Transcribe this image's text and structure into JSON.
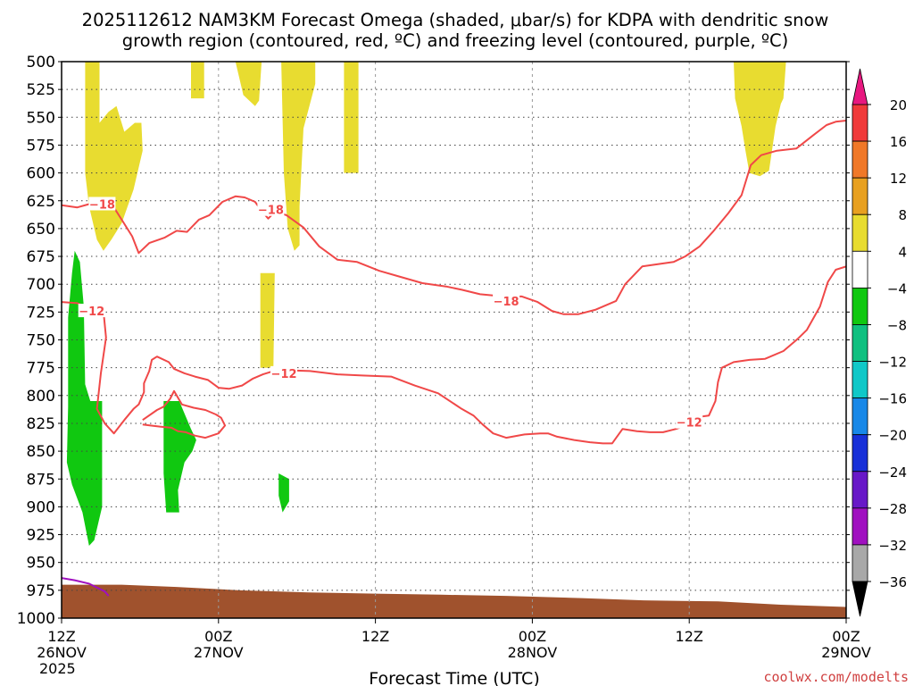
{
  "chart_data": {
    "type": "heatmap",
    "title_line1": "2025112612 NAM3KM Forecast Omega (shaded, μbar/s) for KDPA with dendritic snow",
    "title_line2": "growth region (contoured, red, ºC) and freezing level (contoured, purple, ºC)",
    "xlabel": "Forecast Time (UTC)",
    "credit": "coolwx.com/modelts",
    "x_range_hours": [
      0,
      60
    ],
    "y_range_mb": [
      500,
      1000
    ],
    "y_scale": "pressure, inverted (500 mb at top, 1000 mb at bottom)",
    "y_ticks": [
      500,
      525,
      550,
      575,
      600,
      625,
      650,
      675,
      700,
      725,
      750,
      775,
      800,
      825,
      850,
      875,
      900,
      925,
      950,
      975,
      1000
    ],
    "x_ticks": [
      {
        "hour": 0,
        "line1": "12Z",
        "line2": "26NOV",
        "line3": "2025"
      },
      {
        "hour": 12,
        "line1": "00Z",
        "line2": "27NOV",
        "line3": ""
      },
      {
        "hour": 24,
        "line1": "12Z",
        "line2": "",
        "line3": ""
      },
      {
        "hour": 36,
        "line1": "00Z",
        "line2": "28NOV",
        "line3": ""
      },
      {
        "hour": 48,
        "line1": "12Z",
        "line2": "",
        "line3": ""
      },
      {
        "hour": 60,
        "line1": "00Z",
        "line2": "29NOV",
        "line3": ""
      }
    ],
    "grid": true,
    "colorbar": {
      "placement": "right",
      "labels": [
        "20",
        "16",
        "12",
        "8",
        "4",
        "−4",
        "−8",
        "−12",
        "−16",
        "−20",
        "−24",
        "−28",
        "−32",
        "−36"
      ],
      "bins": [
        {
          "color": "#f03a3a"
        },
        {
          "color": "#f07828"
        },
        {
          "color": "#e8a020"
        },
        {
          "color": "#e8dc30"
        },
        {
          "color": "#ffffff"
        },
        {
          "color": "#10c810"
        },
        {
          "color": "#10c080"
        },
        {
          "color": "#10c8c8"
        },
        {
          "color": "#1888e8"
        },
        {
          "color": "#1830d8"
        },
        {
          "color": "#6818c8"
        },
        {
          "color": "#a010c0"
        },
        {
          "color": "#a8a8a8"
        }
      ],
      "top_arrow_color": "#e81880",
      "bottom_arrow_color": "#000000"
    },
    "omega_positive_regions": [
      {
        "color": "#e8dc30",
        "points": [
          [
            1.8,
            500
          ],
          [
            2.9,
            500
          ],
          [
            2.9,
            555
          ],
          [
            3.6,
            545
          ],
          [
            4.2,
            540
          ],
          [
            4.8,
            563
          ],
          [
            5.6,
            555
          ],
          [
            6.1,
            555
          ],
          [
            6.2,
            580
          ],
          [
            5.5,
            615
          ],
          [
            4.6,
            645
          ],
          [
            3.8,
            660
          ],
          [
            3.2,
            670
          ],
          [
            2.7,
            660
          ],
          [
            2.1,
            630
          ],
          [
            1.8,
            600
          ]
        ]
      },
      {
        "color": "#e8dc30",
        "points": [
          [
            9.9,
            500
          ],
          [
            10.9,
            500
          ],
          [
            10.9,
            533
          ],
          [
            9.9,
            533
          ]
        ]
      },
      {
        "color": "#e8dc30",
        "points": [
          [
            13.3,
            500
          ],
          [
            15.3,
            500
          ],
          [
            15.1,
            535
          ],
          [
            14.8,
            540
          ],
          [
            13.9,
            530
          ]
        ]
      },
      {
        "color": "#e8dc30",
        "points": [
          [
            16.8,
            500
          ],
          [
            19.4,
            500
          ],
          [
            19.4,
            520
          ],
          [
            18.5,
            560
          ],
          [
            18.2,
            630
          ],
          [
            18.2,
            665
          ],
          [
            17.8,
            670
          ],
          [
            17.3,
            650
          ],
          [
            17.0,
            600
          ]
        ]
      },
      {
        "color": "#e8dc30",
        "points": [
          [
            21.6,
            500
          ],
          [
            22.7,
            500
          ],
          [
            22.7,
            600
          ],
          [
            21.6,
            600
          ]
        ]
      },
      {
        "color": "#e8dc30",
        "points": [
          [
            51.4,
            500
          ],
          [
            55.4,
            500
          ],
          [
            55.2,
            533
          ],
          [
            55.0,
            538
          ],
          [
            54.6,
            558
          ],
          [
            54.1,
            598
          ],
          [
            53.4,
            603
          ],
          [
            52.6,
            600
          ],
          [
            52.3,
            580
          ],
          [
            52.0,
            558
          ],
          [
            51.5,
            533
          ]
        ]
      },
      {
        "color": "#e8dc30",
        "points": [
          [
            15.2,
            690
          ],
          [
            16.3,
            690
          ],
          [
            16.2,
            775
          ],
          [
            15.2,
            775
          ]
        ]
      }
    ],
    "omega_negative_regions": [
      {
        "color": "#10c810",
        "points": [
          [
            1.0,
            670
          ],
          [
            1.4,
            680
          ],
          [
            1.7,
            720
          ],
          [
            1.8,
            790
          ],
          [
            2.2,
            805
          ],
          [
            3.1,
            805
          ],
          [
            3.1,
            900
          ],
          [
            2.5,
            930
          ],
          [
            2.1,
            935
          ],
          [
            1.6,
            905
          ],
          [
            0.8,
            880
          ],
          [
            0.4,
            860
          ],
          [
            0.5,
            810
          ],
          [
            0.5,
            730
          ],
          [
            0.8,
            690
          ]
        ]
      },
      {
        "color": "#10c810",
        "points": [
          [
            7.8,
            805
          ],
          [
            9.0,
            805
          ],
          [
            9.9,
            830
          ],
          [
            10.3,
            840
          ],
          [
            10.0,
            850
          ],
          [
            9.4,
            860
          ],
          [
            9.1,
            875
          ],
          [
            8.9,
            885
          ],
          [
            9.0,
            905
          ],
          [
            8.0,
            905
          ],
          [
            7.8,
            870
          ]
        ]
      },
      {
        "color": "#10c810",
        "points": [
          [
            16.6,
            870
          ],
          [
            17.4,
            875
          ],
          [
            17.4,
            895
          ],
          [
            16.9,
            905
          ],
          [
            16.6,
            890
          ]
        ]
      }
    ],
    "ground_layer": {
      "color": "#a0522d",
      "points": [
        [
          0,
          970
        ],
        [
          4.6,
          970
        ],
        [
          8.8,
          972
        ],
        [
          13.7,
          975
        ],
        [
          18.9,
          977
        ],
        [
          24.0,
          978
        ],
        [
          29.0,
          979
        ],
        [
          34.0,
          980
        ],
        [
          39.8,
          982
        ],
        [
          44.5,
          984
        ],
        [
          50.2,
          985
        ],
        [
          55.0,
          988
        ],
        [
          60,
          990
        ],
        [
          60,
          1000
        ],
        [
          0,
          1000
        ]
      ]
    },
    "isotherms": [
      {
        "label": "−18",
        "label_positions": [
          [
            3.1,
            628
          ],
          [
            16.0,
            633
          ],
          [
            34.0,
            715
          ]
        ],
        "points": [
          [
            0,
            629
          ],
          [
            1.2,
            631
          ],
          [
            2.1,
            628
          ],
          [
            3.0,
            625
          ],
          [
            4.0,
            631
          ],
          [
            4.7,
            644
          ],
          [
            5.4,
            657
          ],
          [
            5.9,
            672
          ],
          [
            6.7,
            663
          ],
          [
            7.9,
            658
          ],
          [
            8.8,
            652
          ],
          [
            9.6,
            653
          ],
          [
            10.5,
            642
          ],
          [
            11.3,
            638
          ],
          [
            12.3,
            626
          ],
          [
            13.3,
            621
          ],
          [
            14.0,
            622
          ],
          [
            14.8,
            626
          ],
          [
            15.3,
            634
          ],
          [
            15.8,
            641
          ],
          [
            16.3,
            635
          ],
          [
            17.2,
            638
          ],
          [
            18.5,
            649
          ],
          [
            19.7,
            666
          ],
          [
            21.1,
            678
          ],
          [
            22.6,
            680
          ],
          [
            24.3,
            688
          ],
          [
            25.8,
            693
          ],
          [
            27.6,
            699
          ],
          [
            29.4,
            702
          ],
          [
            30.6,
            705
          ],
          [
            32.0,
            709
          ],
          [
            33.8,
            711
          ],
          [
            35.2,
            711
          ],
          [
            36.4,
            716
          ],
          [
            37.5,
            724
          ],
          [
            38.4,
            727
          ],
          [
            39.5,
            727
          ],
          [
            40.8,
            723
          ],
          [
            42.4,
            715
          ],
          [
            43.1,
            700
          ],
          [
            44.4,
            684
          ],
          [
            45.6,
            682
          ],
          [
            46.8,
            680
          ],
          [
            47.7,
            675
          ],
          [
            48.8,
            666
          ],
          [
            49.8,
            653
          ],
          [
            51.0,
            636
          ],
          [
            52.0,
            620
          ],
          [
            52.7,
            593
          ],
          [
            53.5,
            584
          ],
          [
            54.7,
            580
          ],
          [
            56.2,
            578
          ],
          [
            57.5,
            566
          ],
          [
            58.5,
            557
          ],
          [
            59.2,
            554
          ],
          [
            60,
            553
          ]
        ]
      },
      {
        "label": "−12",
        "label_positions": [
          [
            2.3,
            724
          ],
          [
            17.0,
            780
          ],
          [
            48.0,
            824
          ]
        ],
        "points": [
          [
            0,
            716
          ],
          [
            1.2,
            717
          ],
          [
            1.8,
            720
          ],
          [
            2.0,
            725
          ],
          [
            2.9,
            720
          ],
          [
            3.2,
            724
          ],
          [
            3.4,
            748
          ],
          [
            3.0,
            780
          ],
          [
            2.7,
            812
          ],
          [
            3.3,
            825
          ],
          [
            4.0,
            834
          ],
          [
            4.8,
            822
          ],
          [
            5.5,
            812
          ],
          [
            5.9,
            808
          ],
          [
            6.3,
            797
          ],
          [
            6.3,
            789
          ],
          [
            6.7,
            778
          ],
          [
            6.9,
            768
          ],
          [
            7.3,
            765
          ],
          [
            8.2,
            770
          ],
          [
            8.6,
            776
          ],
          [
            9.4,
            780
          ],
          [
            10.2,
            783
          ],
          [
            11.2,
            786
          ],
          [
            12.0,
            793
          ],
          [
            12.8,
            794
          ],
          [
            13.8,
            791
          ],
          [
            14.6,
            785
          ],
          [
            15.4,
            781
          ],
          [
            16.2,
            778
          ],
          [
            16.4,
            777
          ],
          [
            19.0,
            778
          ],
          [
            21.1,
            781
          ],
          [
            23.0,
            782
          ],
          [
            25.2,
            783
          ],
          [
            27.0,
            791
          ],
          [
            28.8,
            798
          ],
          [
            30.6,
            812
          ],
          [
            31.5,
            818
          ],
          [
            32.2,
            826
          ],
          [
            33.0,
            834
          ],
          [
            34.0,
            838
          ],
          [
            35.4,
            835
          ],
          [
            36.6,
            834
          ],
          [
            37.2,
            834
          ],
          [
            37.9,
            837
          ],
          [
            39.2,
            840
          ],
          [
            40.4,
            842
          ],
          [
            41.4,
            843
          ],
          [
            42.1,
            843
          ],
          [
            42.9,
            830
          ],
          [
            44.0,
            832
          ],
          [
            45.0,
            833
          ],
          [
            46.0,
            833
          ],
          [
            47.0,
            830
          ],
          [
            47.7,
            827
          ],
          [
            48.2,
            820
          ],
          [
            49.5,
            818
          ],
          [
            50.0,
            805
          ],
          [
            50.2,
            788
          ],
          [
            50.5,
            775
          ],
          [
            51.4,
            770
          ],
          [
            52.6,
            768
          ],
          [
            53.8,
            767
          ],
          [
            55.2,
            760
          ],
          [
            56.3,
            749
          ],
          [
            57.0,
            741
          ],
          [
            58.0,
            720
          ],
          [
            58.6,
            698
          ],
          [
            59.2,
            687
          ],
          [
            60,
            684
          ]
        ]
      },
      {
        "label": "",
        "label_positions": [],
        "points": [
          [
            6.2,
            822
          ],
          [
            7.3,
            813
          ],
          [
            7.8,
            810
          ],
          [
            8.3,
            803
          ],
          [
            8.6,
            796
          ],
          [
            8.9,
            802
          ],
          [
            9.2,
            808
          ],
          [
            10.1,
            811
          ],
          [
            11.0,
            813
          ],
          [
            11.8,
            817
          ],
          [
            12.2,
            820
          ],
          [
            12.5,
            827
          ],
          [
            12.0,
            834
          ],
          [
            11.0,
            838
          ],
          [
            10.2,
            836
          ],
          [
            9.5,
            833
          ],
          [
            8.9,
            832
          ],
          [
            8.4,
            829
          ],
          [
            7.6,
            828
          ],
          [
            6.8,
            827
          ],
          [
            6.2,
            826
          ]
        ]
      }
    ],
    "freezing_level": {
      "color": "#a010c0",
      "points": [
        [
          0,
          964
        ],
        [
          1.0,
          966
        ],
        [
          2.1,
          969
        ],
        [
          3.3,
          976
        ],
        [
          3.6,
          980
        ]
      ]
    }
  }
}
